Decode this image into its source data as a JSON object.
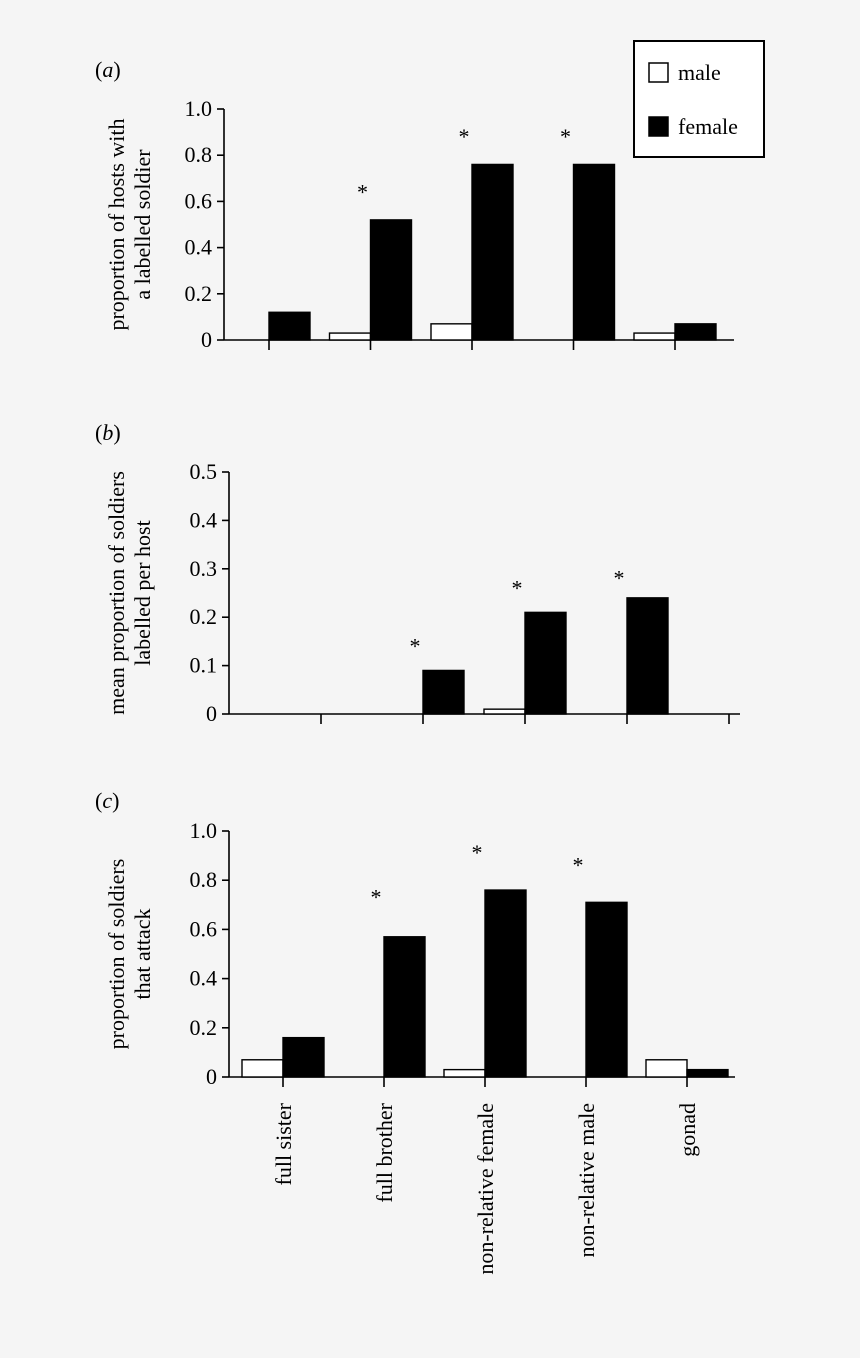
{
  "legend": {
    "items": [
      {
        "label": "male",
        "color": "#ffffff"
      },
      {
        "label": "female",
        "color": "#000000"
      }
    ]
  },
  "chart_data": [
    {
      "type": "bar",
      "panel": "(a)",
      "ylabel_lines": [
        "proportion of hosts with",
        "a labelled soldier"
      ],
      "ylim": [
        0,
        1.0
      ],
      "yticks": [
        "0",
        "0.2",
        "0.4",
        "0.6",
        "0.8",
        "1.0"
      ],
      "categories": [
        "full sister",
        "full brother",
        "non-relative female",
        "non-relative male",
        "gonad"
      ],
      "series": [
        {
          "name": "male",
          "values": [
            0,
            0.03,
            0.07,
            0,
            0.03
          ]
        },
        {
          "name": "female",
          "values": [
            0.12,
            0.52,
            0.76,
            0.76,
            0.07
          ]
        }
      ],
      "significance": [
        "",
        "*",
        "*",
        "*",
        ""
      ],
      "star_levels": [
        0,
        0.66,
        0.9,
        0.9,
        0
      ]
    },
    {
      "type": "bar",
      "panel": "(b)",
      "ylabel_lines": [
        "mean proportion of soldiers",
        "labelled per host"
      ],
      "ylim": [
        0,
        0.5
      ],
      "yticks": [
        "0",
        "0.1",
        "0.2",
        "0.3",
        "0.4",
        "0.5"
      ],
      "categories": [
        "full sister",
        "full brother",
        "non-relative female",
        "non-relative male",
        "gonad"
      ],
      "series": [
        {
          "name": "male",
          "values": [
            0,
            0,
            0.01,
            0,
            0
          ]
        },
        {
          "name": "female",
          "values": [
            0,
            0.09,
            0.21,
            0.24,
            0
          ]
        }
      ],
      "significance": [
        "",
        "*",
        "*",
        "*",
        ""
      ],
      "star_levels": [
        0,
        0.15,
        0.27,
        0.29,
        0
      ]
    },
    {
      "type": "bar",
      "panel": "(c)",
      "ylabel_lines": [
        "proportion of soldiers",
        "that attack"
      ],
      "ylim": [
        0,
        1.0
      ],
      "yticks": [
        "0",
        "0.2",
        "0.4",
        "0.6",
        "0.8",
        "1.0"
      ],
      "categories": [
        "full sister",
        "full brother",
        "non-relative female",
        "non-relative male",
        "gonad"
      ],
      "series": [
        {
          "name": "male",
          "values": [
            0.07,
            0,
            0.03,
            0,
            0.07
          ]
        },
        {
          "name": "female",
          "values": [
            0.16,
            0.57,
            0.76,
            0.71,
            0.03
          ]
        }
      ],
      "significance": [
        "",
        "*",
        "*",
        "*",
        ""
      ],
      "star_levels": [
        0,
        0.75,
        0.93,
        0.88,
        0
      ]
    }
  ]
}
